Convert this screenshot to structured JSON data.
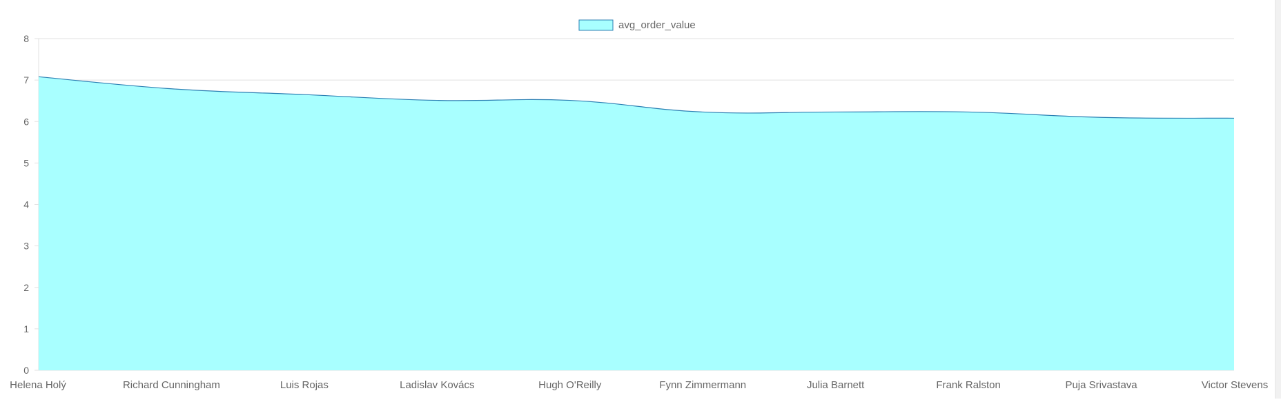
{
  "chart_data": {
    "type": "area",
    "categories": [
      "Helena Holý",
      "Richard Cunningham",
      "Luis Rojas",
      "Ladislav Kovács",
      "Hugh O'Reilly",
      "Fynn Zimmermann",
      "Julia Barnett",
      "Frank Ralston",
      "Puja Srivastava",
      "Victor Stevens"
    ],
    "series": [
      {
        "name": "avg_order_value",
        "values": [
          7.08,
          6.79,
          6.65,
          6.51,
          6.51,
          6.23,
          6.23,
          6.23,
          6.1,
          6.08
        ],
        "fill_color": "#a8ffff",
        "line_color": "#2b7fb3"
      }
    ],
    "ylim": [
      0,
      8
    ],
    "yticks": [
      "0",
      "1",
      "2",
      "3",
      "4",
      "5",
      "6",
      "7",
      "8"
    ],
    "grid": true,
    "legend_position": "top-center",
    "title": "",
    "xlabel": "",
    "ylabel": ""
  }
}
